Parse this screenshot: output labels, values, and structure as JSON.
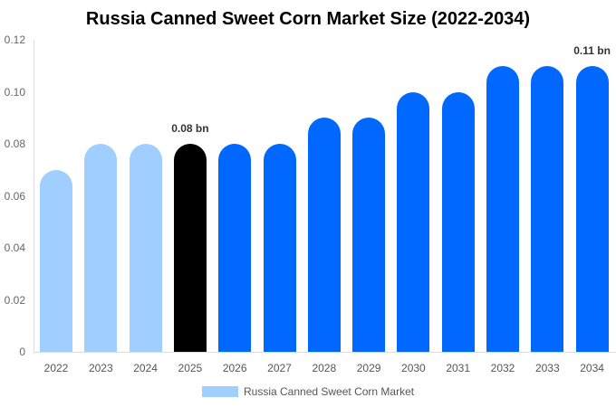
{
  "chart_data": {
    "type": "bar",
    "title": "Russia Canned Sweet Corn Market Size (2022-2034)",
    "xlabel": "",
    "ylabel": "",
    "ylim": [
      0,
      0.12
    ],
    "yticks": [
      "0",
      "0.02",
      "0.04",
      "0.06",
      "0.08",
      "0.10",
      "0.12"
    ],
    "categories": [
      "2022",
      "2023",
      "2024",
      "2025",
      "2026",
      "2027",
      "2028",
      "2029",
      "2030",
      "2031",
      "2032",
      "2033",
      "2034"
    ],
    "series": [
      {
        "name": "Russia Canned Sweet Corn Market",
        "values": [
          0.07,
          0.08,
          0.08,
          0.08,
          0.08,
          0.08,
          0.09,
          0.09,
          0.1,
          0.1,
          0.11,
          0.11,
          0.11
        ]
      }
    ],
    "bar_colors": [
      "#a0cfff",
      "#a0cfff",
      "#a0cfff",
      "#000000",
      "#0068ff",
      "#0068ff",
      "#0068ff",
      "#0068ff",
      "#0068ff",
      "#0068ff",
      "#0068ff",
      "#0068ff",
      "#0068ff"
    ],
    "annotations": [
      {
        "category": "2025",
        "text": "0.08 bn"
      },
      {
        "category": "2034",
        "text": "0.11 bn"
      }
    ],
    "legend": {
      "label": "Russia Canned Sweet Corn Market",
      "color": "#a0cfff",
      "position": "bottom"
    },
    "grid": false
  }
}
